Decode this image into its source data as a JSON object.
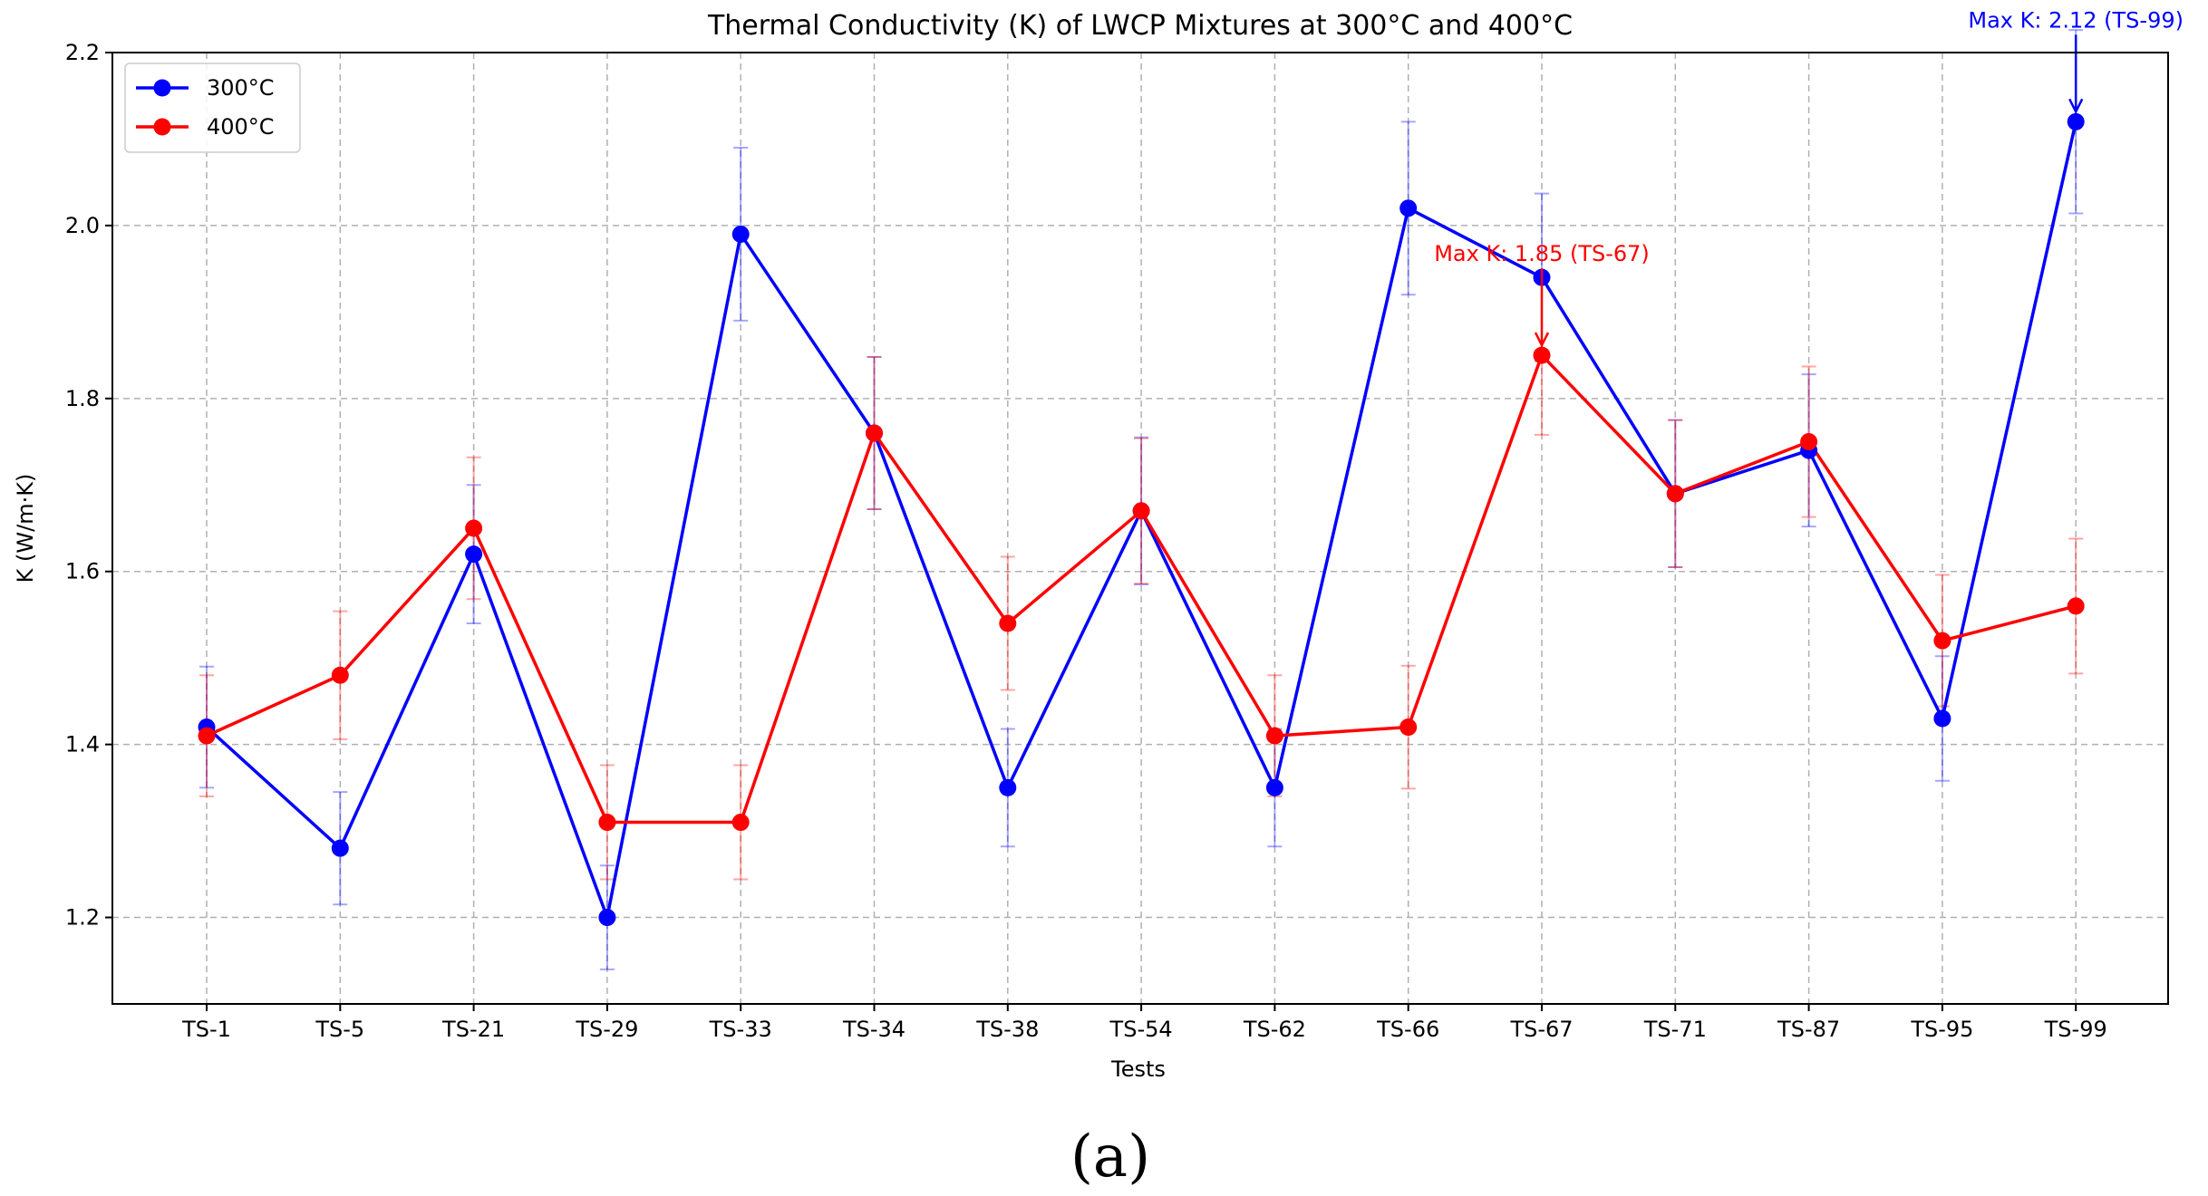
{
  "chart_data": {
    "type": "line",
    "title": "Thermal Conductivity (K) of LWCP Mixtures at 300°C and 400°C",
    "xlabel": "Tests",
    "ylabel": "K (W/m·K)",
    "ylim": [
      1.1,
      2.2
    ],
    "yticks": [
      1.2,
      1.4,
      1.6,
      1.8,
      2.0,
      2.2
    ],
    "ytick_labels": [
      "1.2",
      "1.4",
      "1.6",
      "1.8",
      "2.0",
      "2.2"
    ],
    "grid": true,
    "legend_position": "top-left",
    "categories": [
      "TS-1",
      "TS-5",
      "TS-21",
      "TS-29",
      "TS-33",
      "TS-34",
      "TS-38",
      "TS-54",
      "TS-62",
      "TS-66",
      "TS-67",
      "TS-71",
      "TS-87",
      "TS-95",
      "TS-99"
    ],
    "series": [
      {
        "name": "300°C",
        "color": "#0000ff",
        "values": [
          1.42,
          1.28,
          1.62,
          1.2,
          1.99,
          1.76,
          1.35,
          1.67,
          1.35,
          2.02,
          1.94,
          1.69,
          1.74,
          1.43,
          2.12
        ],
        "errors": [
          0.07,
          0.065,
          0.08,
          0.06,
          0.1,
          0.088,
          0.068,
          0.085,
          0.068,
          0.1,
          0.097,
          0.085,
          0.088,
          0.072,
          0.106
        ]
      },
      {
        "name": "400°C",
        "color": "#ff0000",
        "values": [
          1.41,
          1.48,
          1.65,
          1.31,
          1.31,
          1.76,
          1.54,
          1.67,
          1.41,
          1.42,
          1.85,
          1.69,
          1.75,
          1.52,
          1.56
        ],
        "errors": [
          0.07,
          0.074,
          0.082,
          0.066,
          0.066,
          0.088,
          0.077,
          0.084,
          0.07,
          0.071,
          0.092,
          0.085,
          0.087,
          0.076,
          0.078
        ]
      }
    ],
    "annotations": [
      {
        "series": "300°C",
        "category": "TS-99",
        "value": 2.12,
        "text": "Max K: 2.12 (TS-99)",
        "color": "#0000ff"
      },
      {
        "series": "400°C",
        "category": "TS-67",
        "value": 1.85,
        "text": "Max K: 1.85 (TS-67)",
        "color": "#ff0000"
      }
    ],
    "panel_label": "(a)"
  }
}
